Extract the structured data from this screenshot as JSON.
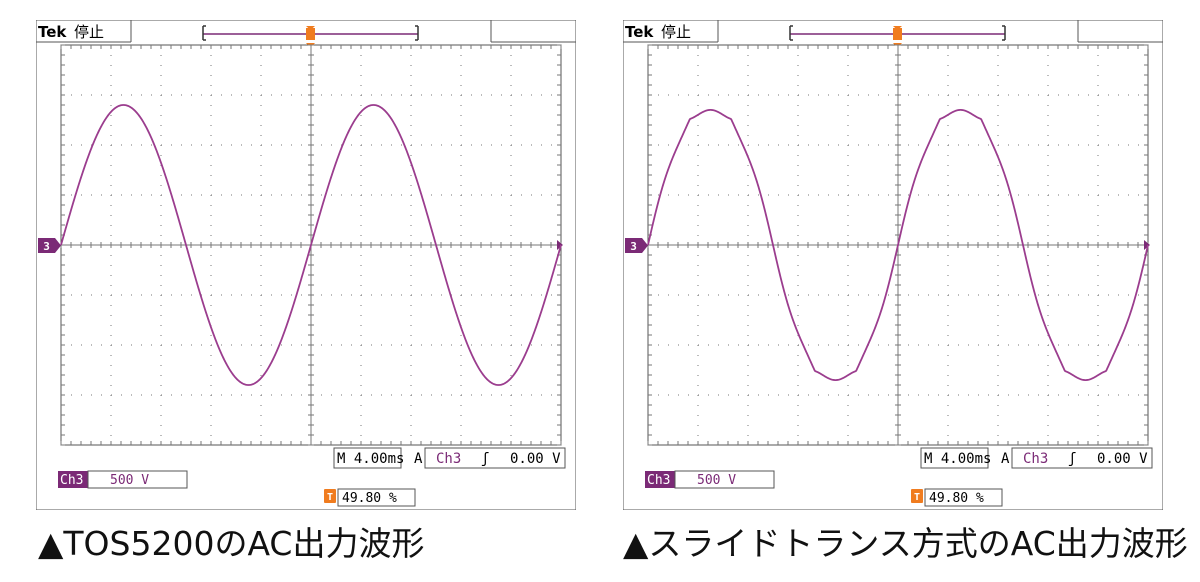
{
  "scopes": [
    {
      "id": "left",
      "brand": "Tek",
      "status": "停止",
      "trigger_marker": "T",
      "channel_marker": "3",
      "timebase": "M 4.00ms",
      "trigger_mode": "A",
      "trigger_source": "Ch3",
      "trigger_slope_symbol": "ʃ",
      "trigger_level": "0.00 V",
      "channel_label": "Ch3",
      "channel_scale": "500 V",
      "trigger_position": "49.80 %",
      "caption": "▲TOS5200のAC出力波形"
    },
    {
      "id": "right",
      "brand": "Tek",
      "status": "停止",
      "trigger_marker": "T",
      "channel_marker": "3",
      "timebase": "M 4.00ms",
      "trigger_mode": "A",
      "trigger_source": "Ch3",
      "trigger_slope_symbol": "ʃ",
      "trigger_level": "0.00 V",
      "channel_label": "Ch3",
      "channel_scale": "500 V",
      "trigger_position": "49.80 %",
      "caption": "▲スライドトランス方式のAC出力波形"
    }
  ],
  "colors": {
    "trace": "#9b3d8e",
    "label_bg": "#7b2a76",
    "trigger_marker": "#f07c1f",
    "grid": "#777777",
    "frame": "#555555"
  },
  "chart_data": [
    {
      "type": "line",
      "title": "",
      "xlabel": "",
      "ylabel": "",
      "x_unit": "ms",
      "x_range": [
        -20,
        20
      ],
      "y_range_div": [
        -4,
        4
      ],
      "grid": true,
      "waveform": "sine",
      "frequency_hz": 50,
      "amplitude_div": 2.8,
      "shape": "clean"
    },
    {
      "type": "line",
      "title": "",
      "xlabel": "",
      "ylabel": "",
      "x_unit": "ms",
      "x_range": [
        -20,
        20
      ],
      "y_range_div": [
        -4,
        4
      ],
      "grid": true,
      "waveform": "sine",
      "frequency_hz": 50,
      "amplitude_div": 2.8,
      "shape": "distorted"
    }
  ]
}
